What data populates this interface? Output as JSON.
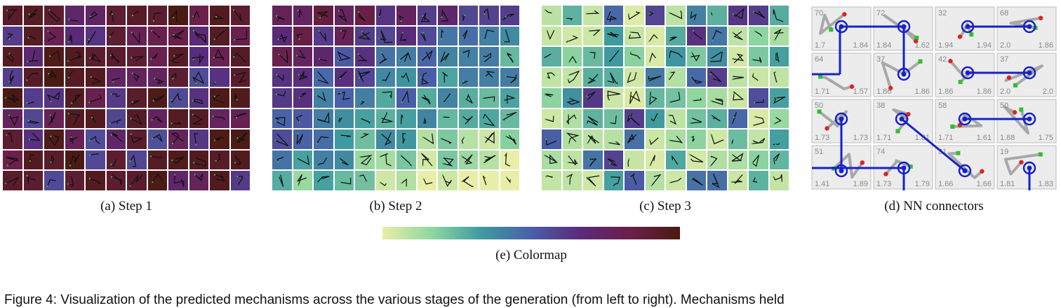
{
  "figure": {
    "panels": [
      {
        "id": "a",
        "caption": "(a)  Step 1"
      },
      {
        "id": "b",
        "caption": "(b)  Step 2"
      },
      {
        "id": "c",
        "caption": "(c)  Step 3"
      },
      {
        "id": "d",
        "caption": "(d)  NN connectors"
      }
    ],
    "colormap_caption": "(e)  Colormap",
    "colormap_stops": [
      "#e8eea8",
      "#8fd6a0",
      "#3e9aa0",
      "#4a5fa8",
      "#5a2a7a",
      "#6b1f4a",
      "#4a1a10"
    ],
    "figure_text": "Figure 4: Visualization of the predicted mechanisms across the various stages of the generation (from left to right). Mechanisms held",
    "nn_cells": [
      {
        "top": "70",
        "left": "1.7",
        "right": "1.84"
      },
      {
        "top": "72",
        "left": "1.84",
        "right": "1.62"
      },
      {
        "top": "32",
        "left": "1.94",
        "right": "1.94"
      },
      {
        "top": "68",
        "left": "2.0",
        "right": "1.86"
      },
      {
        "top": "64",
        "left": "1.71",
        "right": "1.57"
      },
      {
        "top": "37",
        "left": "1.86",
        "right": "1.86"
      },
      {
        "top": "42",
        "left": "1.86",
        "right": "1.86"
      },
      {
        "top": "37",
        "left": "2.0",
        "right": "2.0"
      },
      {
        "top": "50",
        "left": "1.73",
        "right": "1.73"
      },
      {
        "top": "38",
        "left": "1.71",
        "right": "1.81"
      },
      {
        "top": "58",
        "left": "1.71",
        "right": "1.61"
      },
      {
        "top": "50",
        "left": "1.88",
        "right": "1.75"
      },
      {
        "top": "51",
        "left": "1.41",
        "right": "1.89"
      },
      {
        "top": "74",
        "left": "1.73",
        "right": "1.79"
      },
      {
        "top": "31",
        "left": "1.66",
        "right": "1.66"
      },
      {
        "top": "19",
        "left": "1.81",
        "right": "1.83"
      }
    ]
  }
}
